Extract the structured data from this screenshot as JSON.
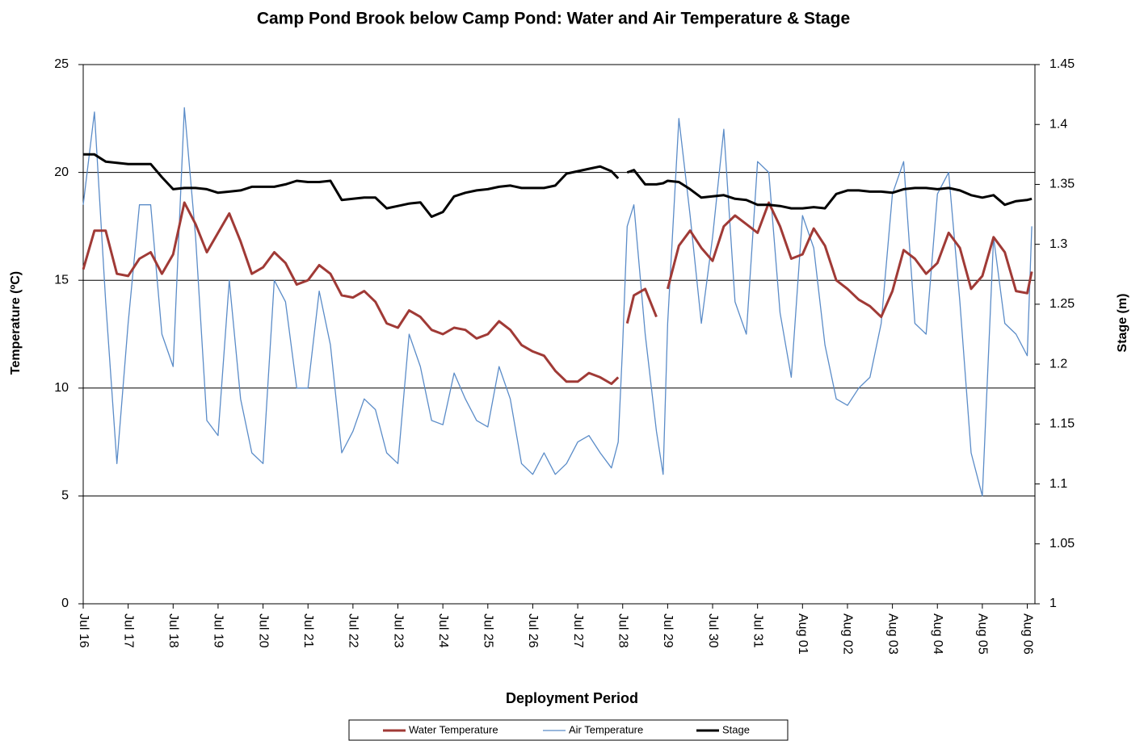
{
  "chart_data": {
    "type": "line",
    "title": "Camp Pond Brook below Camp Pond: Water and Air  Temperature & Stage",
    "x_label": "Deployment Period",
    "y_label": "Temperature (ºC)",
    "y2_label": "Stage (m)",
    "x": [
      0,
      0.25,
      0.5,
      0.75,
      1,
      1.25,
      1.5,
      1.75,
      2,
      2.25,
      2.5,
      2.75,
      3,
      3.25,
      3.5,
      3.75,
      4,
      4.25,
      4.5,
      4.75,
      5,
      5.25,
      5.5,
      5.75,
      6,
      6.25,
      6.5,
      6.75,
      7,
      7.25,
      7.5,
      7.75,
      8,
      8.25,
      8.5,
      8.75,
      9,
      9.25,
      9.5,
      9.75,
      10,
      10.25,
      10.5,
      10.75,
      11,
      11.25,
      11.5,
      11.75,
      11.9,
      12,
      12.1,
      12.25,
      12.5,
      12.75,
      12.9,
      13,
      13.25,
      13.5,
      13.75,
      14,
      14.25,
      14.5,
      14.75,
      15,
      15.25,
      15.5,
      15.75,
      16,
      16.25,
      16.5,
      16.75,
      17,
      17.25,
      17.5,
      17.75,
      18,
      18.25,
      18.5,
      18.75,
      19,
      19.25,
      19.5,
      19.75,
      20,
      20.25,
      20.5,
      20.75,
      21,
      21.1
    ],
    "xlim": [
      0,
      21.17
    ],
    "xticks": [
      {
        "value": 0,
        "label": "Jul 16"
      },
      {
        "value": 1,
        "label": "Jul 17"
      },
      {
        "value": 2,
        "label": "Jul 18"
      },
      {
        "value": 3,
        "label": "Jul 19"
      },
      {
        "value": 4,
        "label": "Jul 20"
      },
      {
        "value": 5,
        "label": "Jul 21"
      },
      {
        "value": 6,
        "label": "Jul 22"
      },
      {
        "value": 7,
        "label": "Jul 23"
      },
      {
        "value": 8,
        "label": "Jul 24"
      },
      {
        "value": 9,
        "label": "Jul 25"
      },
      {
        "value": 10,
        "label": "Jul 26"
      },
      {
        "value": 11,
        "label": "Jul 27"
      },
      {
        "value": 12,
        "label": "Jul 28"
      },
      {
        "value": 13,
        "label": "Jul 29"
      },
      {
        "value": 14,
        "label": "Jul 30"
      },
      {
        "value": 15,
        "label": "Jul 31"
      },
      {
        "value": 16,
        "label": "Aug 01"
      },
      {
        "value": 17,
        "label": "Aug 02"
      },
      {
        "value": 18,
        "label": "Aug 03"
      },
      {
        "value": 19,
        "label": "Aug 04"
      },
      {
        "value": 20,
        "label": "Aug 05"
      },
      {
        "value": 21,
        "label": "Aug 06"
      }
    ],
    "ylim": [
      0,
      25
    ],
    "yticks": [
      0,
      5,
      10,
      15,
      20,
      25
    ],
    "y2lim": [
      1,
      1.45
    ],
    "y2ticks": [
      1,
      1.05,
      1.1,
      1.15,
      1.2,
      1.25,
      1.3,
      1.35,
      1.4,
      1.45
    ],
    "grid": true,
    "legend": "bottom",
    "series": [
      {
        "name": "Water Temperature",
        "color": "#a03a36",
        "width": 3,
        "values": [
          15.5,
          17.3,
          17.3,
          15.3,
          15.2,
          16.0,
          16.3,
          15.3,
          16.2,
          18.6,
          17.6,
          16.3,
          17.2,
          18.1,
          16.8,
          15.3,
          15.6,
          16.3,
          15.8,
          14.8,
          15.0,
          15.7,
          15.3,
          14.3,
          14.2,
          14.5,
          14.0,
          13.0,
          12.8,
          13.6,
          13.3,
          12.7,
          12.5,
          12.8,
          12.7,
          12.3,
          12.5,
          13.1,
          12.7,
          12.0,
          11.7,
          11.5,
          10.8,
          10.3,
          10.3,
          10.7,
          10.5,
          10.2,
          10.5,
          null,
          13.0,
          14.3,
          14.6,
          13.3,
          null,
          14.6,
          16.6,
          17.3,
          16.5,
          15.9,
          17.5,
          18.0,
          17.6,
          17.2,
          18.6,
          17.5,
          16.0,
          16.2,
          17.4,
          16.6,
          15.0,
          14.6,
          14.1,
          13.8,
          13.3,
          14.5,
          16.4,
          16.0,
          15.3,
          15.8,
          17.2,
          16.5,
          14.6,
          15.2,
          17.0,
          16.3,
          14.5,
          14.4,
          15.4
        ]
      },
      {
        "name": "Air Temperature",
        "color": "#5b8cc8",
        "width": 1.3,
        "values": [
          18.5,
          22.8,
          14,
          6.5,
          13,
          18.5,
          18.5,
          12.5,
          11,
          23,
          17,
          8.5,
          7.8,
          15,
          9.5,
          7,
          6.5,
          15,
          14,
          10,
          10,
          14.5,
          12,
          7,
          8,
          9.5,
          9,
          7,
          6.5,
          12.5,
          11,
          8.5,
          8.3,
          10.7,
          9.5,
          8.5,
          8.2,
          11,
          9.5,
          6.5,
          6,
          7,
          6,
          6.5,
          7.5,
          7.8,
          7,
          6.3,
          7.5,
          12,
          17.5,
          18.5,
          12.5,
          8,
          6,
          13,
          22.5,
          18,
          13,
          17,
          22,
          14,
          12.5,
          20.5,
          20,
          13.5,
          10.5,
          18,
          16.5,
          12,
          9.5,
          9.2,
          10,
          10.5,
          13,
          19,
          20.5,
          13,
          12.5,
          19,
          20,
          14,
          7,
          5,
          17,
          13,
          12.5,
          11.5,
          17.5
        ]
      },
      {
        "name": "Stage",
        "color": "#000000",
        "width": 3,
        "axis": "y2",
        "values": [
          1.375,
          1.375,
          1.369,
          1.368,
          1.367,
          1.367,
          1.367,
          1.356,
          1.346,
          1.347,
          1.347,
          1.346,
          1.343,
          1.344,
          1.345,
          1.348,
          1.348,
          1.348,
          1.35,
          1.353,
          1.352,
          1.352,
          1.353,
          1.337,
          1.338,
          1.339,
          1.339,
          1.33,
          1.332,
          1.334,
          1.335,
          1.323,
          1.327,
          1.34,
          1.343,
          1.345,
          1.346,
          1.348,
          1.349,
          1.347,
          1.347,
          1.347,
          1.349,
          1.359,
          1.361,
          1.363,
          1.365,
          1.361,
          1.355,
          null,
          1.36,
          1.362,
          1.35,
          1.35,
          1.351,
          1.353,
          1.352,
          1.346,
          1.339,
          1.34,
          1.341,
          1.338,
          1.337,
          1.333,
          1.333,
          1.332,
          1.33,
          1.33,
          1.331,
          1.33,
          1.342,
          1.345,
          1.345,
          1.344,
          1.344,
          1.343,
          1.346,
          1.347,
          1.347,
          1.346,
          1.347,
          1.345,
          1.341,
          1.339,
          1.341,
          1.333,
          1.336,
          1.337,
          1.338
        ]
      }
    ]
  }
}
